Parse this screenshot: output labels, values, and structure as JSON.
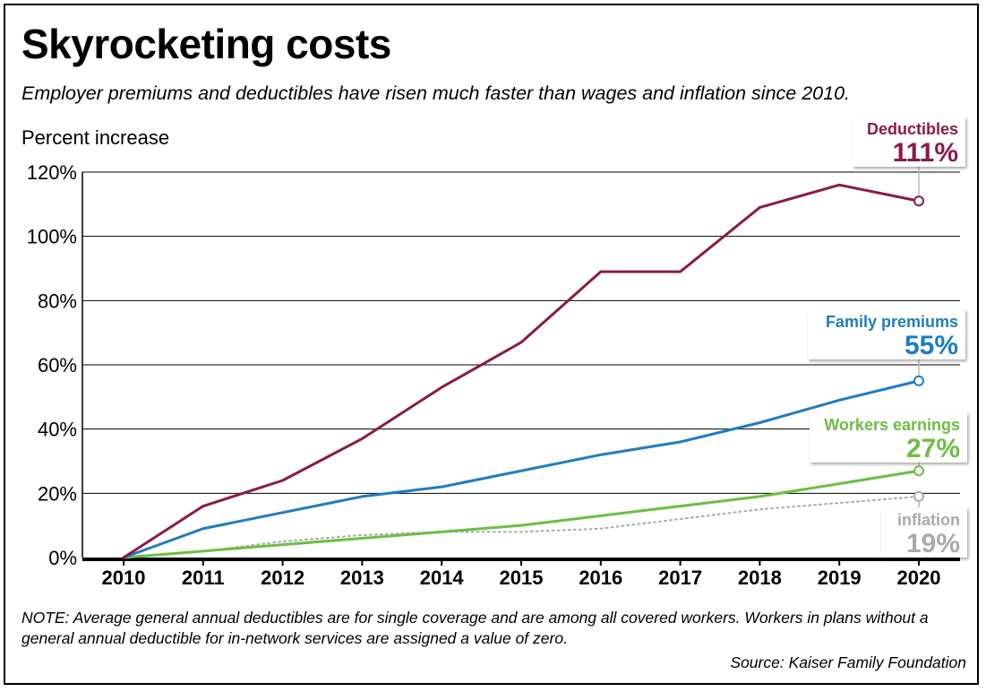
{
  "header": {
    "title": "Skyrocketing costs",
    "subtitle": "Employer premiums and deductibles have risen much faster than wages and inflation since 2010."
  },
  "footer": {
    "note": "NOTE: Average general annual deductibles are for single coverage and are among all covered workers. Workers in plans without a general annual deductible for in-network services are assigned a value of zero.",
    "source": "Source: Kaiser Family Foundation"
  },
  "chart_data": {
    "type": "line",
    "title": "Skyrocketing costs",
    "subtitle": "Employer premiums and deductibles have risen much faster than wages and inflation since 2010.",
    "ylabel": "Percent increase",
    "xlabel": "",
    "x": [
      "2010",
      "2011",
      "2012",
      "2013",
      "2014",
      "2015",
      "2016",
      "2017",
      "2018",
      "2019",
      "2020"
    ],
    "ylim": [
      0,
      120
    ],
    "yticks": [
      "0%",
      "20%",
      "40%",
      "60%",
      "80%",
      "100%",
      "120%"
    ],
    "grid": "horizontal",
    "series": [
      {
        "name": "Deductibles",
        "end_label": "111%",
        "color": "#8b1a47",
        "style": "solid",
        "values": [
          0,
          16,
          24,
          37,
          53,
          67,
          89,
          89,
          109,
          116,
          111
        ]
      },
      {
        "name": "Family premiums",
        "end_label": "55%",
        "color": "#1f7cc1",
        "style": "solid",
        "values": [
          0,
          9,
          14,
          19,
          22,
          27,
          32,
          36,
          42,
          49,
          55
        ]
      },
      {
        "name": "Workers earnings",
        "end_label": "27%",
        "color": "#6cbe45",
        "style": "solid",
        "values": [
          0,
          2,
          4,
          6,
          8,
          10,
          13,
          16,
          19,
          23,
          27
        ]
      },
      {
        "name": "inflation",
        "end_label": "19%",
        "color": "#aaaaaa",
        "style": "dotted",
        "values": [
          0,
          2,
          5,
          7,
          8,
          8,
          9,
          12,
          15,
          17,
          19
        ]
      }
    ]
  }
}
